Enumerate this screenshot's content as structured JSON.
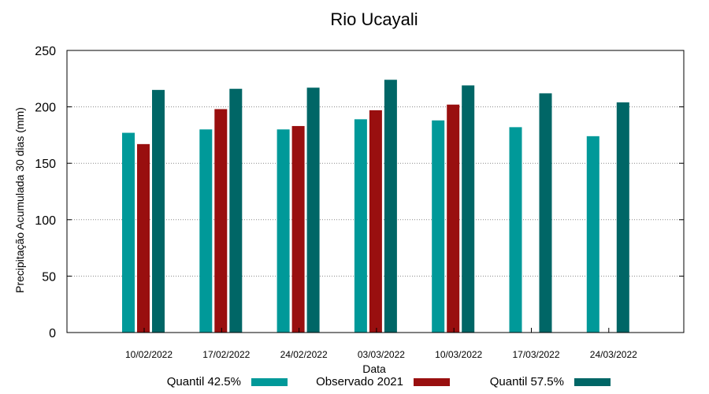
{
  "chart_data": {
    "type": "bar",
    "title": "Rio Ucayali",
    "xlabel": "Data",
    "ylabel": "Precipitação Acumulada 30 dias (mm)",
    "ylim": [
      0,
      250
    ],
    "yticks": [
      0,
      50,
      100,
      150,
      200,
      250
    ],
    "grid": true,
    "legend_position": "bottom",
    "categories": [
      "10/02/2022",
      "17/02/2022",
      "24/02/2022",
      "03/03/2022",
      "10/03/2022",
      "17/03/2022",
      "24/03/2022"
    ],
    "series": [
      {
        "name": "Quantil 42.5%",
        "color": "#009999",
        "values": [
          177,
          180,
          180,
          189,
          188,
          182,
          174
        ]
      },
      {
        "name": "Observado 2021",
        "color": "#990f0f",
        "values": [
          167,
          198,
          183,
          197,
          202,
          null,
          null
        ]
      },
      {
        "name": "Quantil 57.5%",
        "color": "#006666",
        "values": [
          215,
          216,
          217,
          224,
          219,
          212,
          204
        ]
      }
    ]
  }
}
